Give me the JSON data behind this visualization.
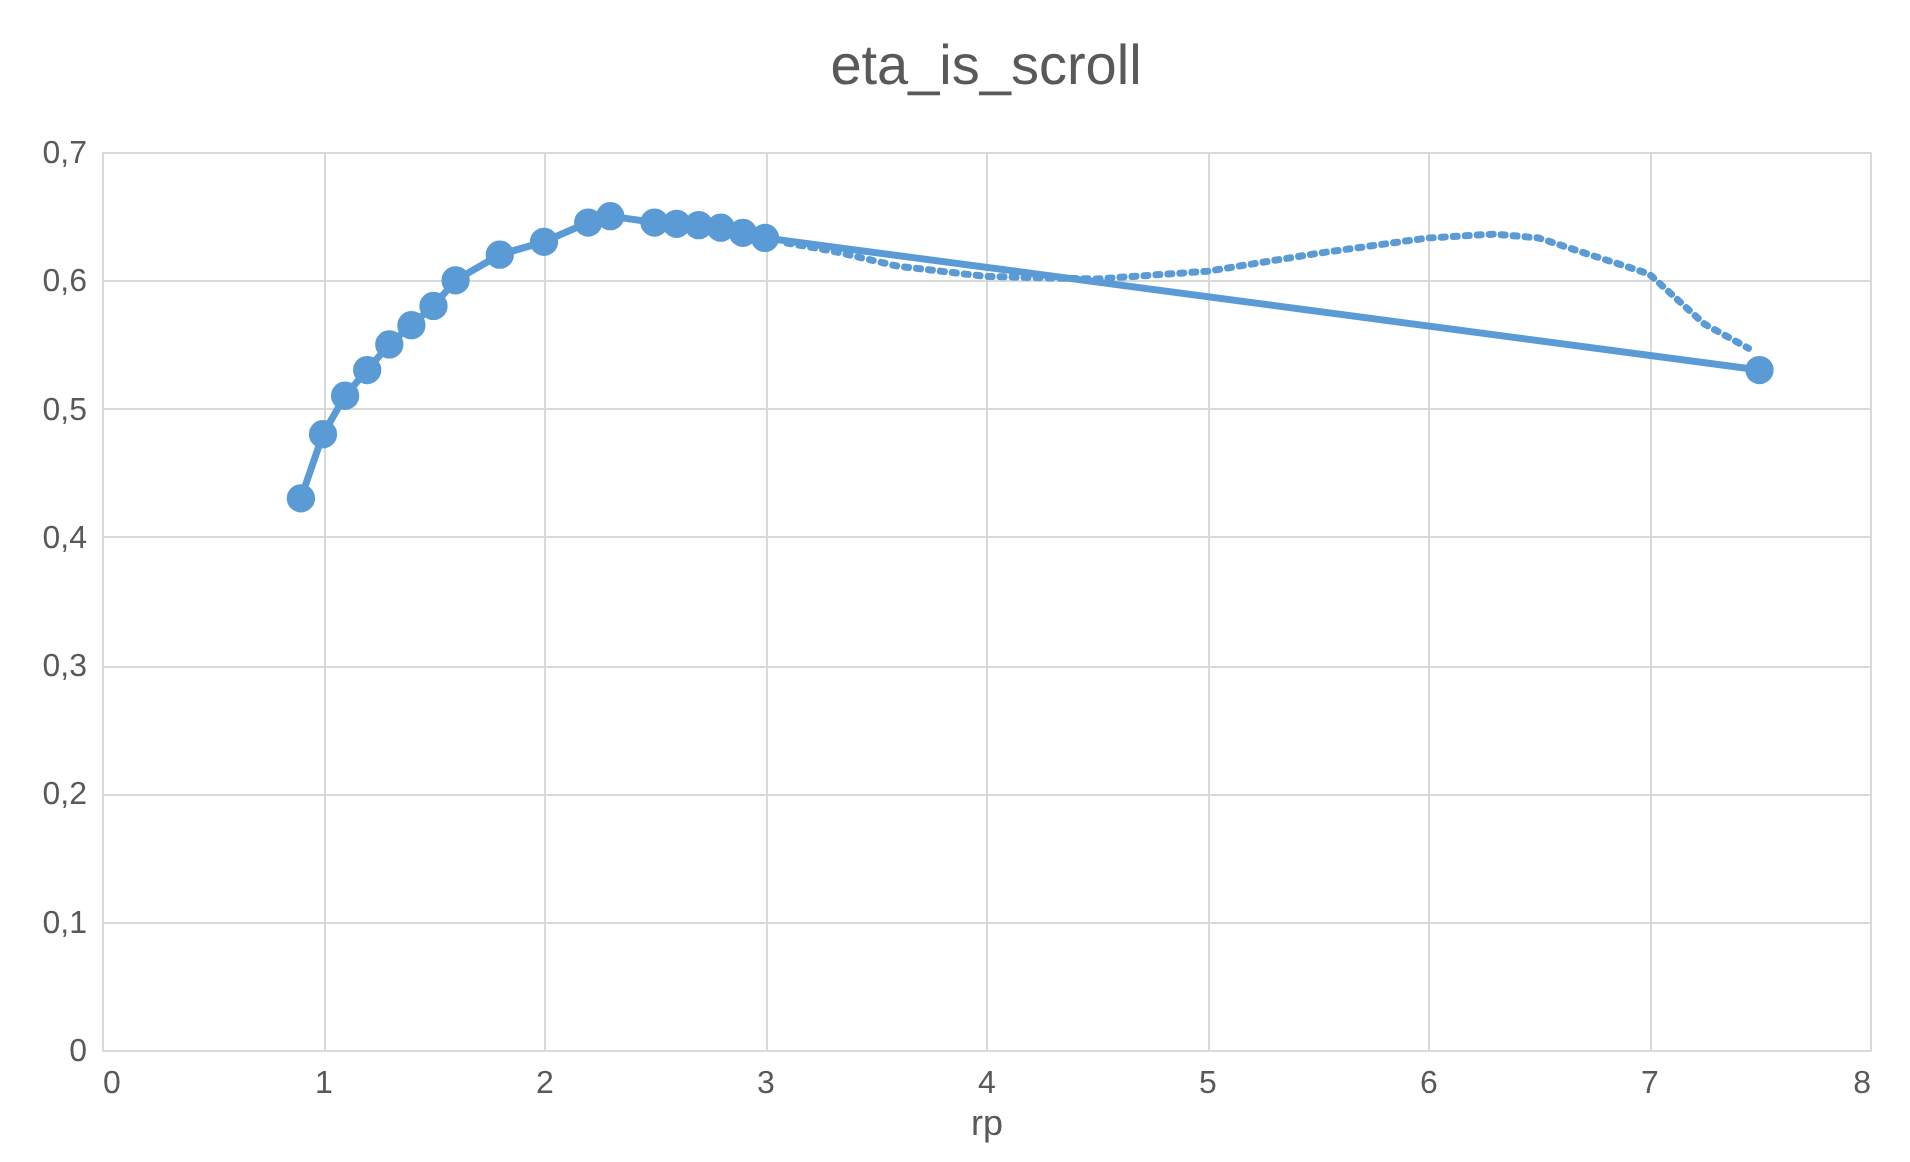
{
  "chart_data": {
    "type": "line",
    "title": "eta_is_scroll",
    "xlabel": "rp",
    "x": [
      0.9,
      1.0,
      1.1,
      1.2,
      1.3,
      1.4,
      1.5,
      1.6,
      1.8,
      2.0,
      2.2,
      2.3,
      2.5,
      2.6,
      2.7,
      2.8,
      2.9,
      3.0,
      7.5
    ],
    "series": [
      {
        "color": "#5b9bd5",
        "marker": "circle",
        "line_style": "solid",
        "values": [
          0.43,
          0.48,
          0.51,
          0.53,
          0.55,
          0.565,
          0.58,
          0.6,
          0.62,
          0.63,
          0.645,
          0.65,
          0.645,
          0.644,
          0.643,
          0.641,
          0.637,
          0.633,
          0.53
        ]
      },
      {
        "color": "#5b9bd5",
        "marker": "none",
        "line_style": "dotted",
        "x": [
          3.1,
          3.3,
          3.6,
          4.0,
          4.5,
          5.0,
          5.5,
          6.0,
          6.3,
          6.5,
          7.0,
          7.25,
          7.45
        ],
        "values": [
          0.629,
          0.623,
          0.611,
          0.603,
          0.601,
          0.607,
          0.621,
          0.633,
          0.636,
          0.633,
          0.605,
          0.566,
          0.547
        ]
      }
    ],
    "xlim": [
      0,
      8
    ],
    "xticks": [
      0,
      1,
      2,
      3,
      4,
      5,
      6,
      7,
      8
    ],
    "ylim": [
      0,
      0.7
    ],
    "yticks": [
      0,
      {
        "value": 0.1,
        "label": "0,1"
      },
      {
        "value": 0.2,
        "label": "0,2"
      },
      {
        "value": 0.3,
        "label": "0,3"
      },
      {
        "value": 0.4,
        "label": "0,4"
      },
      {
        "value": 0.5,
        "label": "0,5"
      },
      {
        "value": 0.6,
        "label": "0,6"
      },
      {
        "value": 0.7,
        "label": "0,7"
      }
    ],
    "grid": true
  }
}
